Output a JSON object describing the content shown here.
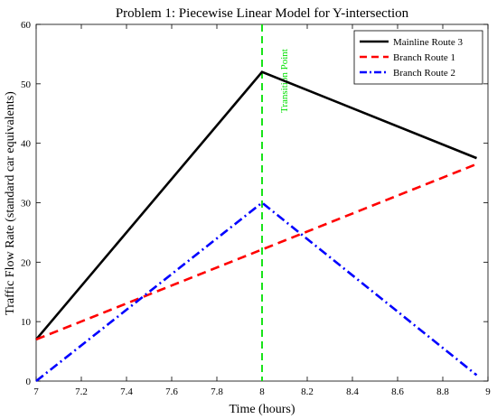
{
  "chart_data": {
    "type": "line",
    "title": "Problem 1: Piecewise Linear Model for Y-intersection",
    "xlabel": "Time (hours)",
    "ylabel": "Traffic Flow Rate (standard car equivalents)",
    "xlim": [
      7,
      9
    ],
    "ylim": [
      0,
      60
    ],
    "xticks": [
      7,
      7.2,
      7.4,
      7.6,
      7.8,
      8,
      8.2,
      8.4,
      8.6,
      8.8,
      9
    ],
    "xtick_labels": [
      "7",
      "7.2",
      "7.4",
      "7.6",
      "7.8",
      "8",
      "8.2",
      "8.4",
      "8.6",
      "8.8",
      "9"
    ],
    "yticks": [
      0,
      10,
      20,
      30,
      40,
      50,
      60
    ],
    "ytick_labels": [
      "0",
      "10",
      "20",
      "30",
      "40",
      "50",
      "60"
    ],
    "grid": false,
    "legend_position": "top-right",
    "series": [
      {
        "name": "Mainline Route 3",
        "color": "#000000",
        "style": "solid",
        "x": [
          7,
          8,
          8.95
        ],
        "y": [
          7,
          52,
          37.5
        ]
      },
      {
        "name": "Branch Route 1",
        "color": "#ff0000",
        "style": "dashed",
        "x": [
          7,
          8.95
        ],
        "y": [
          7,
          36.5
        ]
      },
      {
        "name": "Branch Route 2",
        "color": "#0000ff",
        "style": "dashdot",
        "x": [
          7,
          8,
          8.95
        ],
        "y": [
          0,
          30,
          1
        ]
      }
    ],
    "annotations": [
      {
        "type": "vline",
        "x": 8,
        "label": "Transition Point",
        "color": "#00e000",
        "style": "dashed"
      }
    ]
  }
}
